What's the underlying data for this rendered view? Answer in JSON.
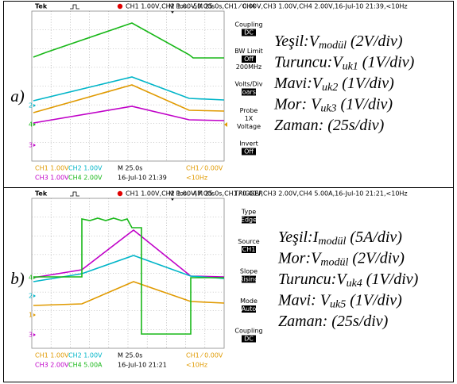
{
  "panels": [
    {
      "label": "a)",
      "scope": {
        "brand": "Tek",
        "status": [
          [
            "CH1  1.00V",
            "CH2  1.00V",
            "M 25.0s",
            "CH1 ⁄ 0.00V"
          ],
          [
            "CH3  1.00V",
            "CH4  2.00V",
            "16-Jul-10 21:39",
            "<10Hz"
          ]
        ],
        "position": "M Pos: -50.00s",
        "menu_title": "CH4",
        "menu": [
          [
            {
              "text": "Coupling"
            },
            {
              "text": "DC",
              "boxed": true
            }
          ],
          [
            {
              "text": "BW Limit"
            },
            {
              "text": "Off",
              "boxed": true
            },
            {
              "text": "200MHz"
            }
          ],
          [
            {
              "text": "Volts/Div"
            },
            {
              "text": "Coarse",
              "boxed": true
            }
          ],
          [
            {
              "text": "Probe"
            },
            {
              "text": "1X"
            },
            {
              "text": "Voltage"
            }
          ],
          [
            {
              "text": "Invert"
            },
            {
              "text": "Off",
              "boxed": true
            }
          ]
        ],
        "markers": [
          "2",
          "4",
          "3"
        ]
      },
      "legend": [
        {
          "text": "Yeşil:",
          "symbol": "V",
          "sub": "modül",
          "suffix": " (2V/div)"
        },
        {
          "text": "Turuncu:",
          "symbol": "V",
          "sub": "uk1",
          "suffix": " (1V/div)"
        },
        {
          "text": "Mavi:",
          "symbol": "V",
          "sub": "uk2",
          "suffix": "  (1V/div)"
        },
        {
          "text": "Mor: ",
          "symbol": "V",
          "sub": "uk3",
          "suffix": "  (1V/div)"
        },
        {
          "text": "Zaman: (25s/div)"
        }
      ]
    },
    {
      "label": "b)",
      "scope": {
        "brand": "Tek",
        "status": [
          [
            "CH1  1.00V",
            "CH2  1.00V",
            "M 25.0s",
            "CH1 ⁄ 0.00V"
          ],
          [
            "CH3  2.00V",
            "CH4  5.00A",
            "16-Jul-10 21:21",
            "<10Hz"
          ]
        ],
        "position": "M Pos: -47.00s",
        "menu_title": "TRIGGER",
        "menu": [
          [
            {
              "text": "Type"
            },
            {
              "text": "Edge",
              "boxed": true
            }
          ],
          [
            {
              "text": "Source"
            },
            {
              "text": "CH1",
              "boxed": true
            }
          ],
          [
            {
              "text": "Slope"
            },
            {
              "text": "Rising",
              "boxed": true
            }
          ],
          [
            {
              "text": "Mode"
            },
            {
              "text": "Auto",
              "boxed": true
            }
          ],
          [
            {
              "text": "Coupling"
            },
            {
              "text": "DC",
              "boxed": true
            }
          ]
        ],
        "markers": [
          "4",
          "2",
          "1",
          "3"
        ]
      },
      "legend": [
        {
          "text": "Yeşil:",
          "symbol": "I",
          "sub": "modül",
          "suffix": "  (5A/div)"
        },
        {
          "text": "Mor:",
          "symbol": "V",
          "sub": "modül",
          "suffix": "  (2V/div)"
        },
        {
          "text": "Turuncu:",
          "symbol": "V",
          "sub": "uk4",
          "suffix": " (1V/div)"
        },
        {
          "text": "Mavi: ",
          "symbol": "V",
          "sub": "uk5",
          "suffix": " (1V/div)"
        },
        {
          "text": "Zaman: (25s/div)"
        }
      ]
    }
  ]
}
